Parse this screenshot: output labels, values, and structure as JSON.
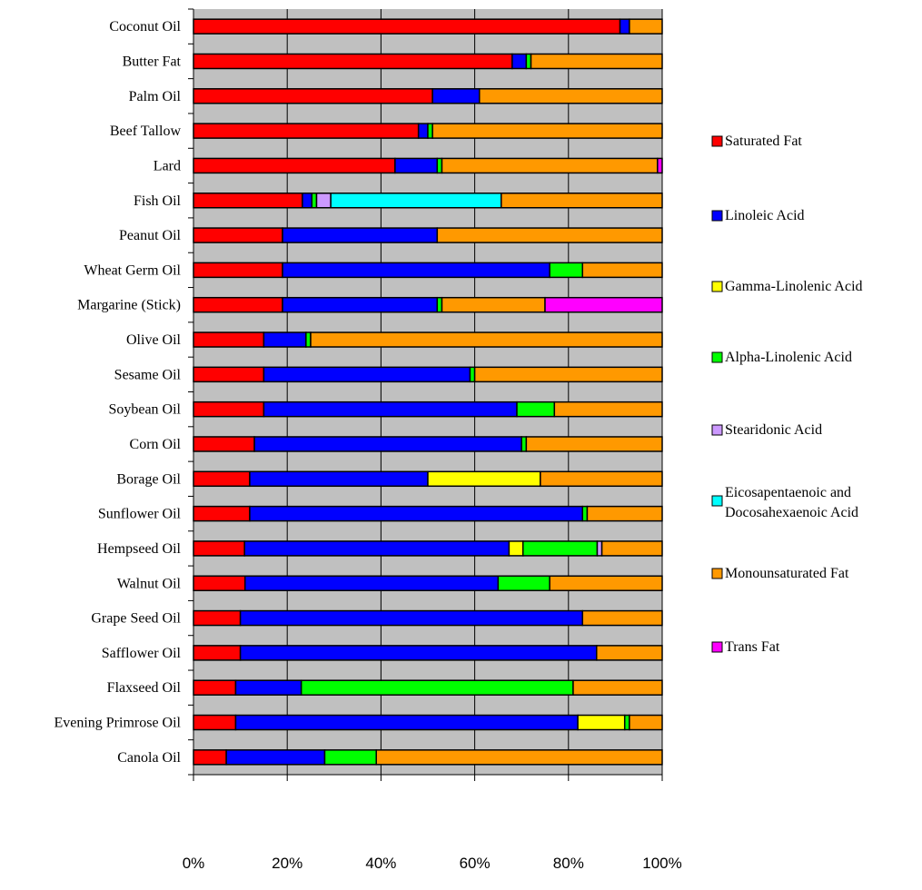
{
  "chart_data": {
    "type": "bar",
    "orientation": "horizontal",
    "stacked": "percent",
    "categories": [
      "Coconut Oil",
      "Butter Fat",
      "Palm Oil",
      "Beef Tallow",
      "Lard",
      "Fish Oil",
      "Peanut Oil",
      "Wheat Germ Oil",
      "Margarine (Stick)",
      "Olive Oil",
      "Sesame Oil",
      "Soybean Oil",
      "Corn Oil",
      "Borage Oil",
      "Sunflower Oil",
      "Hempseed Oil",
      "Walnut Oil",
      "Grape Seed Oil",
      "Safflower Oil",
      "Flaxseed Oil",
      "Evening Primrose Oil",
      "Canola Oil"
    ],
    "series": [
      {
        "name": "Saturated Fat",
        "color": "#ff0000",
        "values": [
          91,
          68,
          51,
          48,
          43,
          23,
          19,
          19,
          19,
          15,
          15,
          15,
          13,
          12,
          12,
          11,
          11,
          10,
          10,
          9,
          9,
          7
        ]
      },
      {
        "name": "Linoleic Acid",
        "color": "#0000ff",
        "values": [
          2,
          3,
          10,
          2,
          9,
          2,
          33,
          57,
          33,
          9,
          44,
          54,
          57,
          38,
          71,
          57,
          54,
          73,
          76,
          14,
          73,
          21
        ]
      },
      {
        "name": "Gamma-Linolenic Acid",
        "color": "#ffff00",
        "values": [
          0,
          0,
          0,
          0,
          0,
          0,
          0,
          0,
          0,
          0,
          0,
          0,
          0,
          24,
          0,
          3,
          0,
          0,
          0,
          0,
          10,
          0
        ]
      },
      {
        "name": "Alpha-Linolenic Acid",
        "color": "#00ff00",
        "values": [
          0,
          1,
          0,
          1,
          1,
          1,
          0,
          7,
          1,
          1,
          1,
          8,
          1,
          0,
          1,
          16,
          11,
          0,
          0,
          58,
          1,
          11
        ]
      },
      {
        "name": "Stearidonic Acid",
        "color": "#cc99ff",
        "values": [
          0,
          0,
          0,
          0,
          0,
          3,
          0,
          0,
          0,
          0,
          0,
          0,
          0,
          0,
          0,
          1,
          0,
          0,
          0,
          0,
          0,
          0
        ]
      },
      {
        "name": "Eicosapentaenoic and Docosahexaenoic Acid",
        "color": "#00ffff",
        "values": [
          0,
          0,
          0,
          0,
          0,
          36,
          0,
          0,
          0,
          0,
          0,
          0,
          0,
          0,
          0,
          0,
          0,
          0,
          0,
          0,
          0,
          0
        ]
      },
      {
        "name": "Monounsaturated Fat",
        "color": "#ff9900",
        "values": [
          7,
          28,
          39,
          49,
          46,
          34,
          48,
          17,
          22,
          75,
          40,
          23,
          29,
          26,
          16,
          13,
          24,
          17,
          14,
          19,
          7,
          61
        ]
      },
      {
        "name": "Trans Fat",
        "color": "#ff00ff",
        "values": [
          0,
          0,
          0,
          0,
          1,
          0,
          0,
          0,
          25,
          0,
          0,
          0,
          0,
          0,
          0,
          0,
          0,
          0,
          0,
          0,
          0,
          0
        ]
      }
    ],
    "xlim": [
      0,
      100
    ],
    "xticks": [
      "0%",
      "20%",
      "40%",
      "60%",
      "80%",
      "100%"
    ],
    "legend_position": "right",
    "grid": "vertical",
    "plot_background": "#c0c0c0",
    "title": "",
    "xlabel": "",
    "ylabel": ""
  }
}
